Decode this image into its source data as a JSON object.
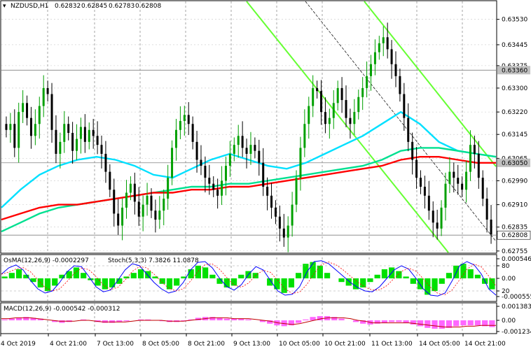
{
  "chart_data": [
    {
      "type": "candlestick",
      "title": "NZDUSD,H1",
      "ohlc": {
        "open": "0.62832",
        "high": "0.62845",
        "low": "0.62783",
        "close": "0.62808"
      },
      "ylim": [
        0.6275,
        0.6359
      ],
      "price_ticks": [
        "0.63530",
        "0.63445",
        "0.63375",
        "0.63300",
        "0.63220",
        "0.63145",
        "0.63065",
        "0.62990",
        "0.62910",
        "0.62835",
        "0.62755"
      ],
      "highlight_labels": [
        {
          "value": 0.6336,
          "label": "0.63360",
          "color": "#c0c0c0"
        },
        {
          "value": 0.6305,
          "label": "0.63050",
          "color": "#c0c0c0"
        },
        {
          "value": 0.62808,
          "label": "0.62808",
          "color": "#ffffff"
        }
      ],
      "horizontal_levels": [
        0.6336,
        0.6305,
        0.62808
      ],
      "x_labels": [
        "4 Oct 2019",
        "4 Oct 21:00",
        "7 Oct 13:00",
        "8 Oct 05:00",
        "8 Oct 21:00",
        "9 Oct 13:00",
        "10 Oct 05:00",
        "10 Oct 21:00",
        "11 Oct 13:00",
        "14 Oct 05:00",
        "14 Oct 21:00"
      ],
      "candles": [
        0.6316,
        0.6318,
        0.631,
        0.6322,
        0.6325,
        0.632,
        0.6314,
        0.6318,
        0.6324,
        0.633,
        0.6328,
        0.6316,
        0.6308,
        0.6312,
        0.6318,
        0.6315,
        0.6309,
        0.6313,
        0.6317,
        0.6312,
        0.6316,
        0.6314,
        0.6311,
        0.6308,
        0.6302,
        0.6296,
        0.6288,
        0.6284,
        0.629,
        0.6295,
        0.6298,
        0.6292,
        0.6287,
        0.6291,
        0.6294,
        0.6289,
        0.6286,
        0.6289,
        0.6293,
        0.63,
        0.631,
        0.6316,
        0.6319,
        0.6321,
        0.6318,
        0.6312,
        0.6306,
        0.6304,
        0.63,
        0.6298,
        0.6296,
        0.6294,
        0.6299,
        0.6304,
        0.6308,
        0.6311,
        0.6314,
        0.631,
        0.6308,
        0.6311,
        0.6309,
        0.6305,
        0.6297,
        0.6294,
        0.629,
        0.6287,
        0.6283,
        0.628,
        0.6284,
        0.6291,
        0.63,
        0.631,
        0.6318,
        0.6324,
        0.633,
        0.6329,
        0.6322,
        0.6318,
        0.632,
        0.6325,
        0.633,
        0.6326,
        0.632,
        0.6318,
        0.6322,
        0.6327,
        0.633,
        0.6334,
        0.6338,
        0.6342,
        0.6345,
        0.6347,
        0.6343,
        0.6338,
        0.6334,
        0.6328,
        0.632,
        0.6312,
        0.6306,
        0.63,
        0.6297,
        0.6294,
        0.6289,
        0.6285,
        0.6283,
        0.629,
        0.6298,
        0.6302,
        0.63,
        0.6298,
        0.6296,
        0.6302,
        0.6311,
        0.6308,
        0.63,
        0.6293,
        0.6286,
        0.6281
      ],
      "moving_averages": [
        {
          "color": "#00e0ff",
          "values": [
            0.629,
            0.6296,
            0.6301,
            0.6304,
            0.6306,
            0.6307,
            0.6306,
            0.6304,
            0.6301,
            0.63,
            0.6303,
            0.6306,
            0.6308,
            0.6306,
            0.6304,
            0.6303,
            0.6305,
            0.6308,
            0.6311,
            0.6314,
            0.6318,
            0.6322,
            0.6318,
            0.6312,
            0.6309,
            0.6308,
            0.6307
          ]
        },
        {
          "color": "#00e090",
          "values": [
            0.6282,
            0.6285,
            0.6288,
            0.629,
            0.6291,
            0.6292,
            0.6293,
            0.6294,
            0.6295,
            0.6296,
            0.6297,
            0.6297,
            0.6298,
            0.6298,
            0.6299,
            0.63,
            0.6301,
            0.6302,
            0.6303,
            0.6304,
            0.6306,
            0.6309,
            0.631,
            0.631,
            0.6309,
            0.6308,
            0.6307
          ]
        },
        {
          "color": "#ff0000",
          "values": [
            0.6286,
            0.6288,
            0.629,
            0.6291,
            0.6291,
            0.6292,
            0.6293,
            0.6294,
            0.6295,
            0.6295,
            0.6296,
            0.6296,
            0.6297,
            0.6297,
            0.6298,
            0.6299,
            0.63,
            0.6301,
            0.6302,
            0.6303,
            0.6304,
            0.6306,
            0.6307,
            0.6307,
            0.6306,
            0.6305,
            0.6305
          ]
        }
      ]
    },
    {
      "type": "bar+line",
      "label": "OsMA(12,26,9) -0.0002297",
      "label2": "Stoch(5,3,3) 7.3826 11.0878",
      "ticks": [
        "0.00054637",
        "80",
        "0.00",
        "20",
        "-0.00055591"
      ],
      "osma": [
        0.1,
        0.3,
        0.5,
        0.2,
        -0.2,
        -0.5,
        -0.7,
        -0.4,
        0.2,
        0.4,
        0.6,
        0.3,
        -0.1,
        -0.4,
        -0.6,
        -0.5,
        -0.3,
        0.1,
        0.3,
        0.5,
        0.4,
        0.1,
        -0.3,
        -0.6,
        -0.4,
        0.1,
        0.5,
        0.7,
        0.6,
        0.2,
        -0.3,
        -0.5,
        -0.4,
        0.2,
        0.4,
        0.3,
        0.0,
        -0.4,
        -0.6,
        -0.8,
        -0.5,
        0.3,
        0.8,
        0.9,
        0.7,
        0.3,
        0.0,
        -0.2,
        -0.4,
        -0.6,
        -0.5,
        -0.2,
        0.2,
        0.5,
        0.6,
        0.4,
        0.1,
        -0.3,
        -0.6,
        -0.9,
        -0.7,
        -0.3,
        0.3,
        0.7,
        0.8,
        0.5,
        0.2,
        -0.3,
        -0.6
      ],
      "stoch": [
        60,
        75,
        82,
        70,
        45,
        25,
        15,
        20,
        40,
        65,
        80,
        78,
        55,
        30,
        18,
        22,
        45,
        70,
        85,
        80,
        60,
        40,
        25,
        15,
        20,
        40,
        70,
        88,
        90,
        75,
        50,
        30,
        22,
        35,
        60,
        78,
        70,
        45,
        20,
        10,
        12,
        30,
        65,
        90,
        92,
        85,
        70,
        55,
        40,
        28,
        20,
        18,
        30,
        50,
        70,
        80,
        72,
        50,
        25,
        10,
        8,
        15,
        45,
        80,
        90,
        82,
        60,
        25,
        10
      ]
    },
    {
      "type": "bar+line",
      "label": "MACD(12,26,9) -0.000542 -0.000312",
      "ticks": [
        "0.001383",
        "0.00",
        "-0.001234"
      ],
      "macd": [
        0.1,
        0.2,
        0.3,
        0.4,
        0.3,
        0.2,
        0.0,
        -0.2,
        -0.3,
        -0.2,
        0.0,
        0.1,
        0.0,
        -0.2,
        -0.3,
        -0.3,
        -0.2,
        -0.1,
        0.0,
        0.1,
        0.1,
        0.0,
        -0.1,
        -0.2,
        -0.2,
        -0.1,
        0.1,
        0.3,
        0.4,
        0.4,
        0.3,
        0.2,
        0.2,
        0.2,
        0.1,
        0.0,
        -0.2,
        -0.4,
        -0.6,
        -0.7,
        -0.6,
        -0.3,
        0.1,
        0.4,
        0.5,
        0.5,
        0.4,
        0.2,
        0.0,
        -0.2,
        -0.4,
        -0.5,
        -0.4,
        -0.3,
        -0.2,
        -0.2,
        -0.3,
        -0.5,
        -0.7,
        -0.9,
        -1.0,
        -1.0,
        -0.9,
        -0.7,
        -0.6,
        -0.6,
        -0.6,
        -0.7,
        -0.8
      ],
      "signal": [
        0.2,
        0.2,
        0.3,
        0.3,
        0.3,
        0.2,
        0.1,
        0.0,
        -0.1,
        -0.1,
        -0.1,
        0.0,
        0.0,
        -0.1,
        -0.2,
        -0.2,
        -0.2,
        -0.2,
        -0.1,
        0.0,
        0.0,
        0.0,
        0.0,
        -0.1,
        -0.1,
        -0.1,
        0.0,
        0.1,
        0.2,
        0.3,
        0.3,
        0.3,
        0.2,
        0.2,
        0.2,
        0.1,
        0.0,
        -0.1,
        -0.3,
        -0.4,
        -0.5,
        -0.4,
        -0.2,
        0.0,
        0.2,
        0.3,
        0.3,
        0.3,
        0.2,
        0.0,
        -0.1,
        -0.3,
        -0.3,
        -0.3,
        -0.3,
        -0.3,
        -0.3,
        -0.4,
        -0.5,
        -0.6,
        -0.7,
        -0.8,
        -0.8,
        -0.8,
        -0.7,
        -0.7,
        -0.6,
        -0.6,
        -0.6
      ]
    }
  ],
  "colors": {
    "up": "#00a000",
    "down": "#000000",
    "ma1": "#00e0ff",
    "ma2": "#00e090",
    "ma3": "#ff0000",
    "channel": "#66ff33",
    "osma": "#00e000",
    "stoch": "#0000ff",
    "macd": "#ff66ff",
    "signal": "#c00000"
  }
}
